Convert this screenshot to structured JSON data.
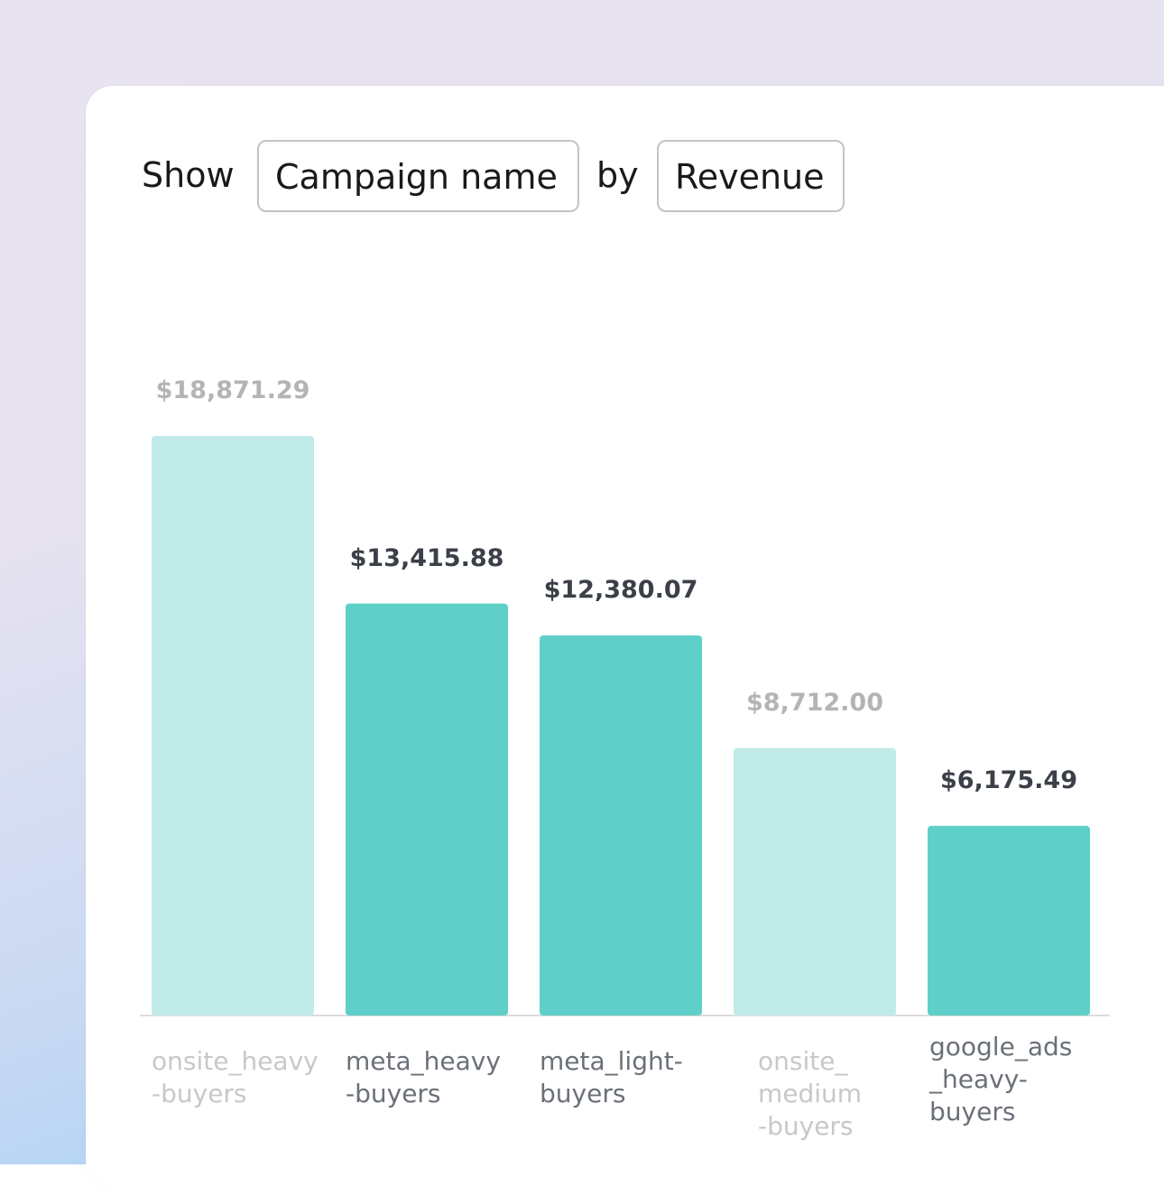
{
  "header": {
    "show": "Show",
    "dimension": "Campaign name",
    "by": "by",
    "metric": "Revenue"
  },
  "chart_data": {
    "type": "bar",
    "categories": [
      "onsite_heavy\n-buyers",
      "meta_heavy\n-buyers",
      "meta_light-\nbuyers",
      "onsite_\nmedium\n-buyers",
      "google_ads\n_heavy-\nbuyers"
    ],
    "values": [
      18871.29,
      13415.88,
      12380.07,
      8712.0,
      6175.49
    ],
    "value_labels": [
      "$18,871.29",
      "$13,415.88",
      "$12,380.07",
      "$8,712.00",
      "$6,175.49"
    ],
    "colors": [
      "#c0ebe8",
      "#5fd0c9",
      "#5fd0c9",
      "#c0ebe8",
      "#5fd0c9"
    ],
    "highlight": [
      false,
      true,
      true,
      false,
      true
    ]
  }
}
